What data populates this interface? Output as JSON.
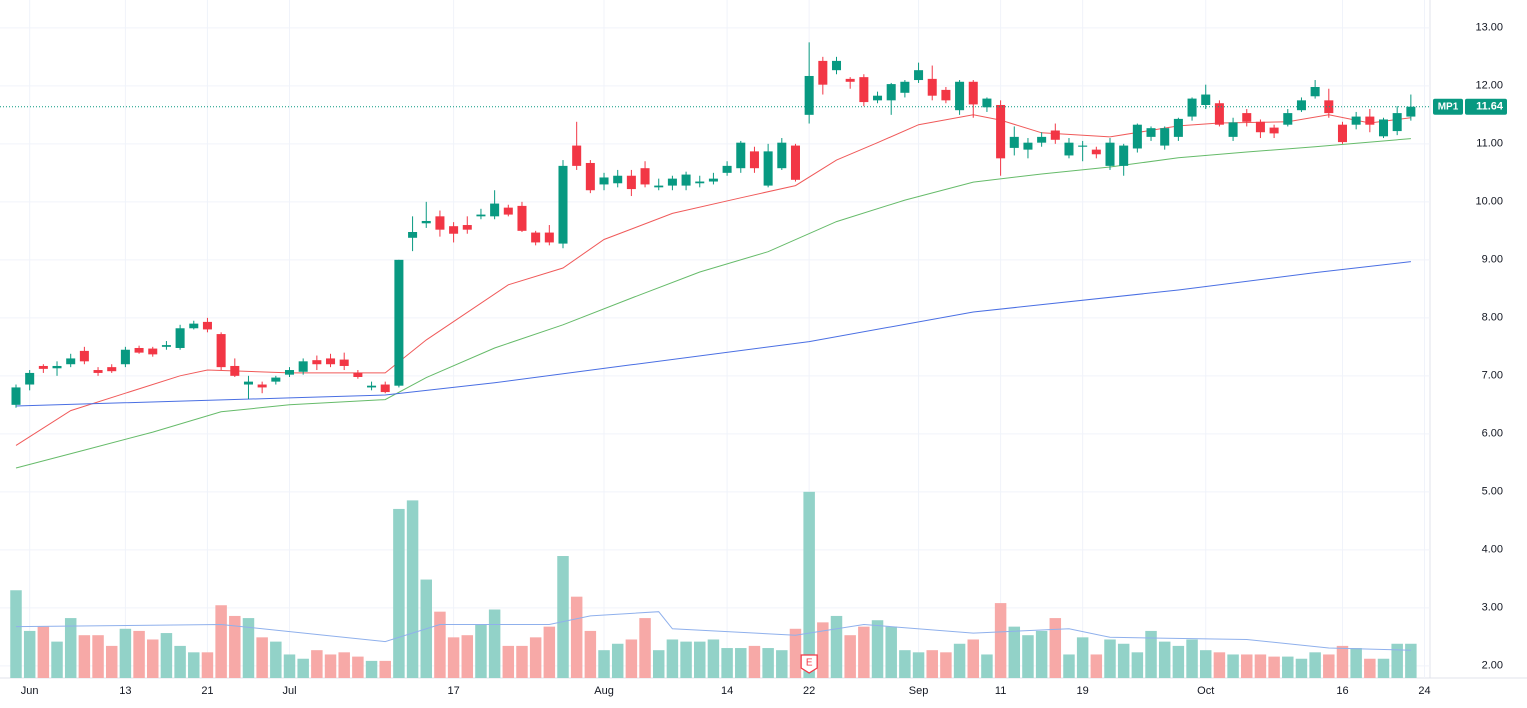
{
  "chart_data": {
    "type": "candlestick",
    "symbol": "MP1",
    "last_price": 11.64,
    "up_color": "#089981",
    "down_color": "#f23645",
    "volume_up_color": "#92d2c8",
    "volume_down_color": "#f7a9a7",
    "xlim": [
      -1.17,
      103.4
    ],
    "ylim": [
      1.79,
      13.48
    ],
    "volume_ylim": [
      0,
      100
    ],
    "grid": true,
    "xticks": [
      {
        "value": 1,
        "label": "Jun"
      },
      {
        "value": 8,
        "label": "13"
      },
      {
        "value": 14,
        "label": "21"
      },
      {
        "value": 20,
        "label": "Jul"
      },
      {
        "value": 32,
        "label": "17"
      },
      {
        "value": 43,
        "label": "Aug"
      },
      {
        "value": 52,
        "label": "14"
      },
      {
        "value": 58,
        "label": "22"
      },
      {
        "value": 66,
        "label": "Sep"
      },
      {
        "value": 72,
        "label": "11"
      },
      {
        "value": 78,
        "label": "19"
      },
      {
        "value": 87,
        "label": "Oct"
      },
      {
        "value": 97,
        "label": "16"
      },
      {
        "value": 103,
        "label": "24"
      }
    ],
    "yticks": [
      {
        "value": 2,
        "label": "2.00"
      },
      {
        "value": 3,
        "label": "3.00"
      },
      {
        "value": 4,
        "label": "4.00"
      },
      {
        "value": 5,
        "label": "5.00"
      },
      {
        "value": 6,
        "label": "6.00"
      },
      {
        "value": 7,
        "label": "7.00"
      },
      {
        "value": 8,
        "label": "8.00"
      },
      {
        "value": 9,
        "label": "9.00"
      },
      {
        "value": 10,
        "label": "10.00"
      },
      {
        "value": 11,
        "label": "11.00"
      },
      {
        "value": 12,
        "label": "12.00"
      },
      {
        "value": 13,
        "label": "13.00"
      }
    ],
    "open": [
      6.5,
      6.85,
      7.17,
      7.13,
      7.2,
      7.43,
      7.1,
      7.15,
      7.2,
      7.48,
      7.47,
      7.5,
      7.48,
      7.82,
      7.93,
      7.72,
      7.17,
      6.85,
      6.85,
      6.9,
      7.02,
      7.07,
      7.27,
      7.3,
      7.28,
      7.05,
      6.8,
      6.85,
      6.83,
      9.38,
      9.63,
      9.75,
      9.58,
      9.6,
      9.75,
      9.75,
      9.9,
      9.93,
      9.47,
      9.47,
      9.28,
      10.97,
      10.67,
      10.3,
      10.32,
      10.45,
      10.58,
      10.25,
      10.28,
      10.28,
      10.32,
      10.35,
      10.5,
      10.58,
      10.87,
      10.28,
      10.58,
      10.97,
      11.5,
      12.43,
      12.27,
      12.12,
      12.15,
      11.75,
      11.75,
      11.88,
      12.1,
      12.12,
      11.93,
      11.58,
      12.07,
      11.63,
      11.67,
      10.93,
      10.9,
      11.02,
      11.23,
      10.8,
      10.95,
      10.9,
      10.62,
      10.62,
      10.92,
      11.12,
      10.97,
      11.12,
      11.47,
      11.67,
      11.7,
      11.12,
      11.53,
      11.38,
      11.28,
      11.33,
      11.58,
      11.82,
      11.75,
      11.33,
      11.33,
      11.47,
      11.13,
      11.22,
      11.47
    ],
    "high": [
      6.85,
      7.1,
      7.2,
      7.25,
      7.38,
      7.5,
      7.15,
      7.2,
      7.5,
      7.52,
      7.5,
      7.6,
      7.88,
      7.95,
      8.0,
      7.75,
      7.3,
      7.0,
      6.9,
      7.0,
      7.15,
      7.3,
      7.35,
      7.38,
      7.4,
      7.1,
      6.9,
      6.9,
      9.0,
      9.75,
      10.0,
      9.85,
      9.65,
      9.75,
      9.88,
      10.2,
      9.95,
      10.0,
      9.5,
      9.6,
      10.72,
      11.38,
      10.72,
      10.5,
      10.55,
      10.55,
      10.7,
      10.4,
      10.45,
      10.52,
      10.45,
      10.5,
      10.7,
      11.05,
      10.95,
      11.0,
      11.1,
      11.0,
      12.75,
      12.5,
      12.5,
      12.15,
      12.2,
      11.9,
      12.05,
      12.1,
      12.4,
      12.35,
      11.98,
      12.1,
      12.1,
      11.8,
      11.75,
      11.3,
      11.1,
      11.2,
      11.35,
      11.1,
      11.05,
      10.95,
      11.1,
      11.0,
      11.35,
      11.3,
      11.3,
      11.45,
      11.8,
      12.02,
      11.75,
      11.45,
      11.6,
      11.42,
      11.33,
      11.6,
      11.8,
      12.1,
      11.95,
      11.38,
      11.55,
      11.6,
      11.45,
      11.65,
      11.85
    ],
    "low": [
      6.45,
      6.75,
      7.05,
      7.0,
      7.15,
      7.2,
      7.0,
      7.05,
      7.15,
      7.38,
      7.33,
      7.45,
      7.45,
      7.8,
      7.75,
      7.1,
      6.98,
      6.6,
      6.7,
      6.85,
      6.98,
      7.02,
      7.1,
      7.15,
      7.1,
      6.95,
      6.75,
      6.7,
      6.8,
      9.15,
      9.55,
      9.4,
      9.3,
      9.45,
      9.7,
      9.7,
      9.75,
      9.48,
      9.25,
      9.25,
      9.2,
      10.55,
      10.15,
      10.2,
      10.25,
      10.1,
      10.25,
      10.2,
      10.2,
      10.2,
      10.25,
      10.3,
      10.45,
      10.5,
      10.5,
      10.25,
      10.55,
      10.35,
      11.35,
      11.85,
      12.2,
      11.95,
      11.65,
      11.7,
      11.5,
      11.8,
      12.05,
      11.75,
      11.7,
      11.5,
      11.45,
      11.55,
      10.45,
      10.8,
      10.75,
      10.95,
      11.0,
      10.75,
      10.7,
      10.75,
      10.55,
      10.45,
      10.85,
      11.05,
      10.9,
      11.05,
      11.4,
      11.6,
      11.3,
      11.05,
      11.3,
      11.1,
      11.1,
      11.3,
      11.55,
      11.78,
      11.45,
      11.0,
      11.25,
      11.2,
      11.1,
      11.15,
      11.4
    ],
    "close": [
      6.8,
      7.05,
      7.12,
      7.17,
      7.3,
      7.25,
      7.05,
      7.08,
      7.45,
      7.4,
      7.37,
      7.53,
      7.82,
      7.9,
      7.8,
      7.15,
      7.0,
      6.9,
      6.8,
      6.97,
      7.1,
      7.25,
      7.2,
      7.2,
      7.17,
      6.98,
      6.83,
      6.72,
      9.0,
      9.48,
      9.67,
      9.52,
      9.45,
      9.52,
      9.78,
      9.97,
      9.78,
      9.5,
      9.3,
      9.3,
      10.62,
      10.62,
      10.2,
      10.42,
      10.45,
      10.22,
      10.3,
      10.28,
      10.4,
      10.47,
      10.35,
      10.4,
      10.62,
      11.02,
      10.58,
      10.87,
      11.02,
      10.38,
      12.17,
      12.02,
      12.43,
      12.07,
      11.72,
      11.83,
      12.03,
      12.07,
      12.27,
      11.83,
      11.75,
      12.07,
      11.68,
      11.78,
      10.75,
      11.12,
      11.02,
      11.12,
      11.07,
      11.02,
      10.97,
      10.82,
      11.02,
      10.97,
      11.33,
      11.27,
      11.27,
      11.43,
      11.78,
      11.85,
      11.33,
      11.37,
      11.38,
      11.2,
      11.18,
      11.53,
      11.75,
      11.98,
      11.53,
      11.03,
      11.47,
      11.33,
      11.42,
      11.53,
      11.64
    ],
    "volume": [
      41,
      22,
      24,
      17,
      28,
      20,
      20,
      15,
      23,
      22,
      18,
      21,
      15,
      12,
      12,
      34,
      29,
      28,
      19,
      17,
      11,
      9,
      13,
      11,
      12,
      10,
      8,
      8,
      79,
      83,
      46,
      31,
      19,
      20,
      25,
      32,
      15,
      15,
      19,
      24,
      57,
      38,
      22,
      13,
      16,
      18,
      28,
      13,
      18,
      17,
      17,
      18,
      14,
      14,
      15,
      14,
      13,
      23,
      87,
      26,
      29,
      20,
      24,
      27,
      24,
      13,
      12,
      13,
      12,
      16,
      18,
      11,
      35,
      24,
      20,
      22,
      28,
      11,
      19,
      11,
      18,
      16,
      12,
      22,
      17,
      15,
      18,
      13,
      12,
      11,
      11,
      11,
      10,
      10,
      9,
      12,
      11,
      15,
      14,
      9,
      9,
      16,
      16
    ],
    "lines": [
      {
        "color": "#f05a5a",
        "x": [
          0,
          4,
          8,
          12,
          14,
          20,
          27,
          30,
          36,
          40,
          43,
          48,
          53,
          57,
          60,
          63,
          66,
          70,
          72,
          75,
          80,
          85,
          88,
          93,
          96,
          99,
          102
        ],
        "values": [
          5.8,
          6.4,
          6.7,
          7.0,
          7.1,
          7.05,
          7.05,
          7.62,
          8.57,
          8.86,
          9.35,
          9.8,
          10.07,
          10.28,
          10.72,
          11.02,
          11.33,
          11.5,
          11.41,
          11.19,
          11.12,
          11.31,
          11.36,
          11.38,
          11.5,
          11.36,
          11.45
        ]
      },
      {
        "color": "#66bb6a",
        "x": [
          0,
          5,
          10,
          15,
          20,
          27,
          30,
          35,
          40,
          45,
          50,
          55,
          60,
          65,
          70,
          75,
          80,
          85,
          90,
          95,
          102
        ],
        "values": [
          5.41,
          5.72,
          6.03,
          6.38,
          6.5,
          6.59,
          6.97,
          7.48,
          7.88,
          8.34,
          8.79,
          9.14,
          9.66,
          10.03,
          10.34,
          10.48,
          10.6,
          10.76,
          10.86,
          10.95,
          11.09
        ]
      },
      {
        "color": "#4a6fe3",
        "x": [
          0,
          20,
          27,
          35,
          45,
          58,
          70,
          85,
          95,
          102
        ],
        "values": [
          6.48,
          6.62,
          6.67,
          6.88,
          7.19,
          7.59,
          8.1,
          8.48,
          8.78,
          8.97
        ]
      },
      {
        "color": "#8fb0ec",
        "pane": "volume",
        "x": [
          0,
          15,
          27,
          31,
          39,
          42,
          47,
          48,
          57,
          62,
          70,
          77,
          80,
          90,
          96,
          102
        ],
        "values": [
          24,
          25,
          17,
          25,
          25,
          29,
          31,
          23,
          20,
          25,
          21,
          23,
          19,
          18,
          14,
          13
        ]
      }
    ],
    "events": [
      {
        "index": 58,
        "label": "E"
      }
    ]
  }
}
